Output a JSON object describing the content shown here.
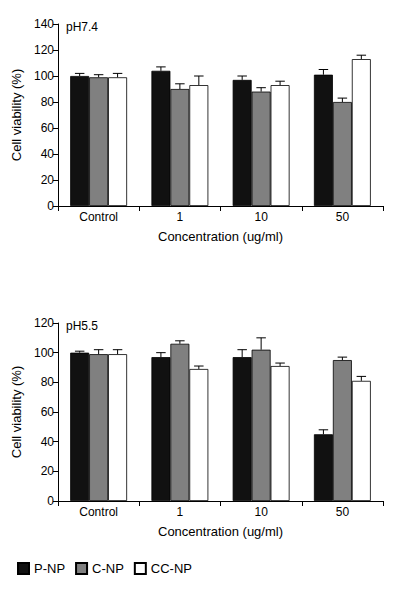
{
  "chart_data": [
    {
      "type": "bar",
      "title": "pH7.4",
      "categories": [
        "Control",
        "1",
        "10",
        "50"
      ],
      "x_label": "Concentration (ug/ml)",
      "y_label": "Cell viability (%)",
      "ylim": [
        0,
        140
      ],
      "yticks": [
        0,
        20,
        40,
        60,
        80,
        100,
        120,
        140
      ],
      "grid": false,
      "series": [
        {
          "name": "P-NP",
          "color": "#111111",
          "values": [
            100,
            104,
            97,
            101
          ],
          "errors": [
            2,
            3,
            3,
            4
          ]
        },
        {
          "name": "C-NP",
          "color": "#808080",
          "values": [
            99,
            90,
            88,
            80
          ],
          "errors": [
            2,
            4,
            3,
            3
          ]
        },
        {
          "name": "CC-NP",
          "color": "#ffffff",
          "values": [
            99,
            93,
            93,
            113
          ],
          "errors": [
            3,
            7,
            3,
            3
          ]
        }
      ]
    },
    {
      "type": "bar",
      "title": "pH5.5",
      "categories": [
        "Control",
        "1",
        "10",
        "50"
      ],
      "x_label": "Concentration (ug/ml)",
      "y_label": "Cell viability (%)",
      "ylim": [
        0,
        120
      ],
      "yticks": [
        0,
        20,
        40,
        60,
        80,
        100,
        120
      ],
      "grid": false,
      "legend": "bottom",
      "series": [
        {
          "name": "P-NP",
          "color": "#111111",
          "values": [
            100,
            97,
            97,
            45
          ],
          "errors": [
            1,
            3,
            5,
            3
          ]
        },
        {
          "name": "C-NP",
          "color": "#808080",
          "values": [
            99,
            106,
            102,
            95
          ],
          "errors": [
            3,
            2,
            8,
            2
          ]
        },
        {
          "name": "CC-NP",
          "color": "#ffffff",
          "values": [
            99,
            89,
            91,
            81
          ],
          "errors": [
            3,
            2,
            2,
            3
          ]
        }
      ]
    }
  ]
}
